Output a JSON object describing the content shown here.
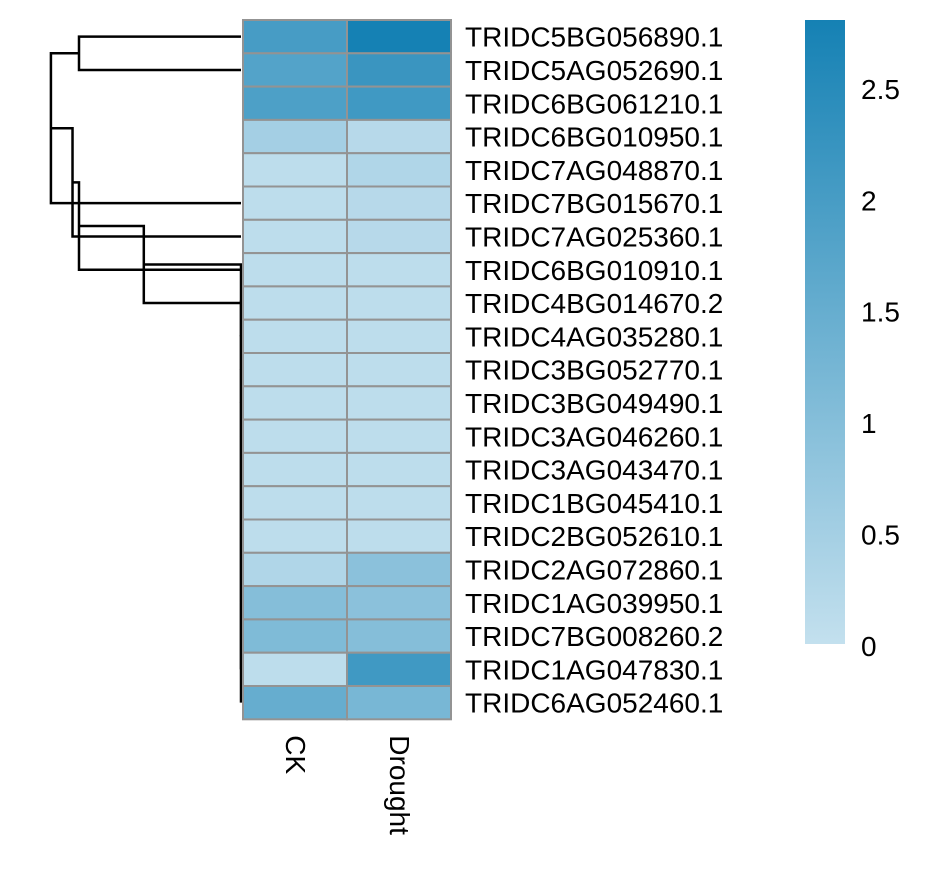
{
  "chart_data": {
    "type": "heatmap",
    "columns": [
      "CK",
      "Drought"
    ],
    "rows": [
      {
        "label": "TRIDC5BG056890.1",
        "values": [
          2.0,
          2.8
        ]
      },
      {
        "label": "TRIDC5AG052690.1",
        "values": [
          1.8,
          2.2
        ]
      },
      {
        "label": "TRIDC6BG061210.1",
        "values": [
          1.9,
          2.1
        ]
      },
      {
        "label": "TRIDC6BG010950.1",
        "values": [
          0.5,
          0.2
        ]
      },
      {
        "label": "TRIDC7AG048870.1",
        "values": [
          0.1,
          0.3
        ]
      },
      {
        "label": "TRIDC7BG015670.1",
        "values": [
          0.1,
          0.2
        ]
      },
      {
        "label": "TRIDC7AG025360.1",
        "values": [
          0.1,
          0.2
        ]
      },
      {
        "label": "TRIDC6BG010910.1",
        "values": [
          0.1,
          0.1
        ]
      },
      {
        "label": "TRIDC4BG014670.2",
        "values": [
          0.1,
          0.1
        ]
      },
      {
        "label": "TRIDC4AG035280.1",
        "values": [
          0.1,
          0.1
        ]
      },
      {
        "label": "TRIDC3BG052770.1",
        "values": [
          0.1,
          0.1
        ]
      },
      {
        "label": "TRIDC3BG049490.1",
        "values": [
          0.1,
          0.1
        ]
      },
      {
        "label": "TRIDC3AG046260.1",
        "values": [
          0.1,
          0.1
        ]
      },
      {
        "label": "TRIDC3AG043470.1",
        "values": [
          0.1,
          0.1
        ]
      },
      {
        "label": "TRIDC1BG045410.1",
        "values": [
          0.1,
          0.1
        ]
      },
      {
        "label": "TRIDC2BG052610.1",
        "values": [
          0.1,
          0.1
        ]
      },
      {
        "label": "TRIDC2AG072860.1",
        "values": [
          0.3,
          0.9
        ]
      },
      {
        "label": "TRIDC1AG039950.1",
        "values": [
          1.0,
          0.9
        ]
      },
      {
        "label": "TRIDC7BG008260.2",
        "values": [
          1.1,
          1.0
        ]
      },
      {
        "label": "TRIDC1AG047830.1",
        "values": [
          0.1,
          2.1
        ]
      },
      {
        "label": "TRIDC6AG052460.1",
        "values": [
          1.5,
          1.2
        ]
      }
    ],
    "color_scale": {
      "min": 0,
      "max": 2.8,
      "low_color": "#c3e0ee",
      "high_color": "#1581b4",
      "ticks": [
        0,
        0.5,
        1,
        1.5,
        2,
        2.5
      ],
      "tick_labels": [
        "0",
        "0.5",
        "1",
        "1.5",
        "2",
        "2.5"
      ]
    },
    "cell_border_color": "#939393",
    "dendrogram": {
      "side": "left",
      "merges": [
        [
          0,
          1,
          0.75
        ],
        [
          0,
          5,
          0.88
        ],
        [
          0,
          6,
          0.78
        ],
        [
          0,
          7,
          0.75
        ],
        [
          0,
          8,
          0.45
        ],
        [
          0,
          9,
          0.0
        ],
        [
          0,
          10,
          0.0
        ],
        [
          0,
          11,
          0.0
        ],
        [
          0,
          12,
          0.0
        ],
        [
          0,
          13,
          0.0
        ],
        [
          0,
          14,
          0.0
        ],
        [
          0,
          15,
          0.0
        ],
        [
          0,
          16,
          0.0
        ],
        [
          0,
          17,
          0.0
        ],
        [
          0,
          18,
          0.0
        ],
        [
          0,
          19,
          0.0
        ],
        [
          0,
          20,
          0.0
        ]
      ]
    }
  }
}
